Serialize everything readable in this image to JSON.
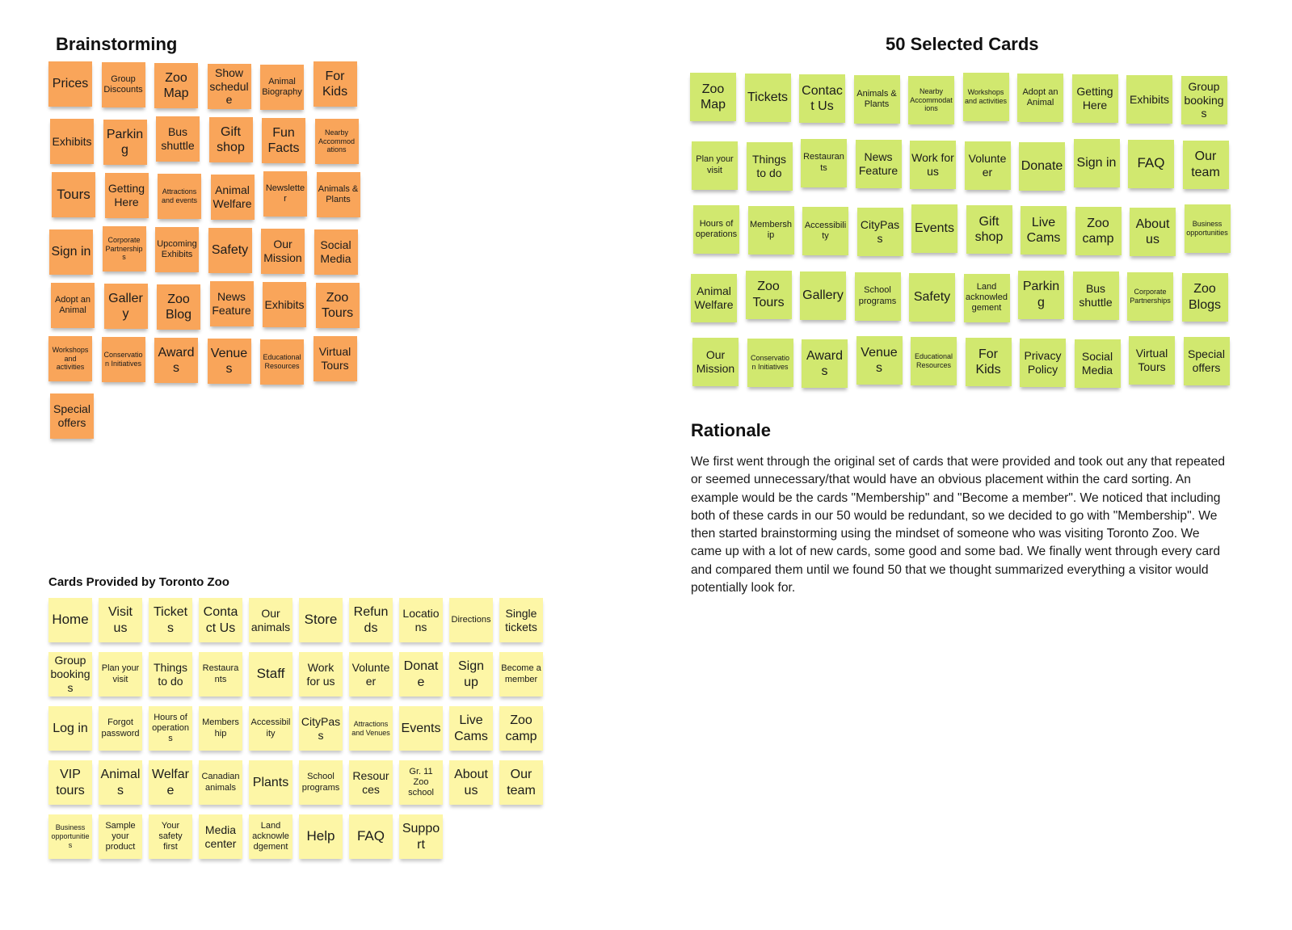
{
  "sections": {
    "brainstorming_title": "Brainstorming",
    "selected_title": "50 Selected Cards",
    "rationale_title": "Rationale",
    "provided_title": "Cards Provided by Toronto Zoo"
  },
  "rationale_text": "We first went through the original set of cards that were provided and took out any that repeated or seemed unnecessary/that would have an obvious placement within the card sorting. An example would be the cards \"Membership\" and \"Become a member\". We noticed that including both of these cards in our 50 would be redundant, so we decided to go with \"Membership\". We then started brainstorming using the mindset of someone who was visiting Toronto Zoo. We came up with a lot of new cards, some good and some bad. We finally went through every card and compared them until we found 50 that we thought summarized everything a visitor would potentially look for.",
  "colors": {
    "brainstorm_note": "#f9a55a",
    "selected_note": "#d1e86f",
    "provided_note": "#fdf6a6"
  },
  "brainstorm_cards": [
    [
      "Prices",
      "Group Discounts",
      "Zoo Map",
      "Show schedule",
      "Animal Biography",
      "For Kids"
    ],
    [
      "Exhibits",
      "Parking",
      "Bus shuttle",
      "Gift shop",
      "Fun Facts",
      "Nearby Accommodations"
    ],
    [
      "Tours",
      "Getting Here",
      "Attractions and events",
      "Animal Welfare",
      "Newsletter",
      "Animals & Plants"
    ],
    [
      "Sign in",
      "Corporate Partnerships",
      "Upcoming Exhibits",
      "Safety",
      "Our Mission",
      "Social Media"
    ],
    [
      "Adopt an Animal",
      "Gallery",
      "Zoo Blog",
      "News Feature",
      "Exhibits",
      "Zoo Tours"
    ],
    [
      "Workshops and activities",
      "Conservation Initiatives",
      "Awards",
      "Venues",
      "Educational Resources",
      "Virtual Tours"
    ],
    [
      "Special offers"
    ]
  ],
  "selected_cards": [
    [
      "Zoo Map",
      "Tickets",
      "Contact Us",
      "Animals & Plants",
      "Nearby Accommodations",
      "Workshops and activities",
      "Adopt an Animal",
      "Getting Here",
      "Exhibits",
      "Group bookings"
    ],
    [
      "Plan your visit",
      "Things to do",
      "Restaurants",
      "News Feature",
      "Work for us",
      "Volunteer",
      "Donate",
      "Sign in",
      "FAQ",
      "Our team"
    ],
    [
      "Hours of operations",
      "Membership",
      "Accessibility",
      "CityPass",
      "Events",
      "Gift shop",
      "Live Cams",
      "Zoo camp",
      "About us",
      "Business opportunities"
    ],
    [
      "Animal Welfare",
      "Zoo Tours",
      "Gallery",
      "School programs",
      "Safety",
      "Land acknowledgement",
      "Parking",
      "Bus shuttle",
      "Corporate Partnerships",
      "Zoo Blogs"
    ],
    [
      "Our Mission",
      "Conservation Initiatives",
      "Awards",
      "Venues",
      "Educational Resources",
      "For Kids",
      "Privacy Policy",
      "Social Media",
      "Virtual Tours",
      "Special offers"
    ]
  ],
  "provided_cards": [
    [
      "Home",
      "Visit us",
      "Tickets",
      "Contact Us",
      "Our animals",
      "Store",
      "Refunds",
      "Locations",
      "Directions",
      "Single tickets"
    ],
    [
      "Group bookings",
      "Plan your visit",
      "Things to do",
      "Restaurants",
      "Staff",
      "Work for us",
      "Volunteer",
      "Donate",
      "Sign up",
      "Become a member"
    ],
    [
      "Log in",
      "Forgot password",
      "Hours of operations",
      "Membership",
      "Accessibility",
      "CityPass",
      "Attractions and Venues",
      "Events",
      "Live Cams",
      "Zoo camp"
    ],
    [
      "VIP tours",
      "Animals",
      "Welfare",
      "Canadian animals",
      "Plants",
      "School programs",
      "Resources",
      "Gr. 11 Zoo school",
      "About us",
      "Our team"
    ],
    [
      "Business opportunities",
      "Sample your product",
      "Your safety first",
      "Media center",
      "Land acknowledgement",
      "Help",
      "FAQ",
      "Support"
    ]
  ]
}
